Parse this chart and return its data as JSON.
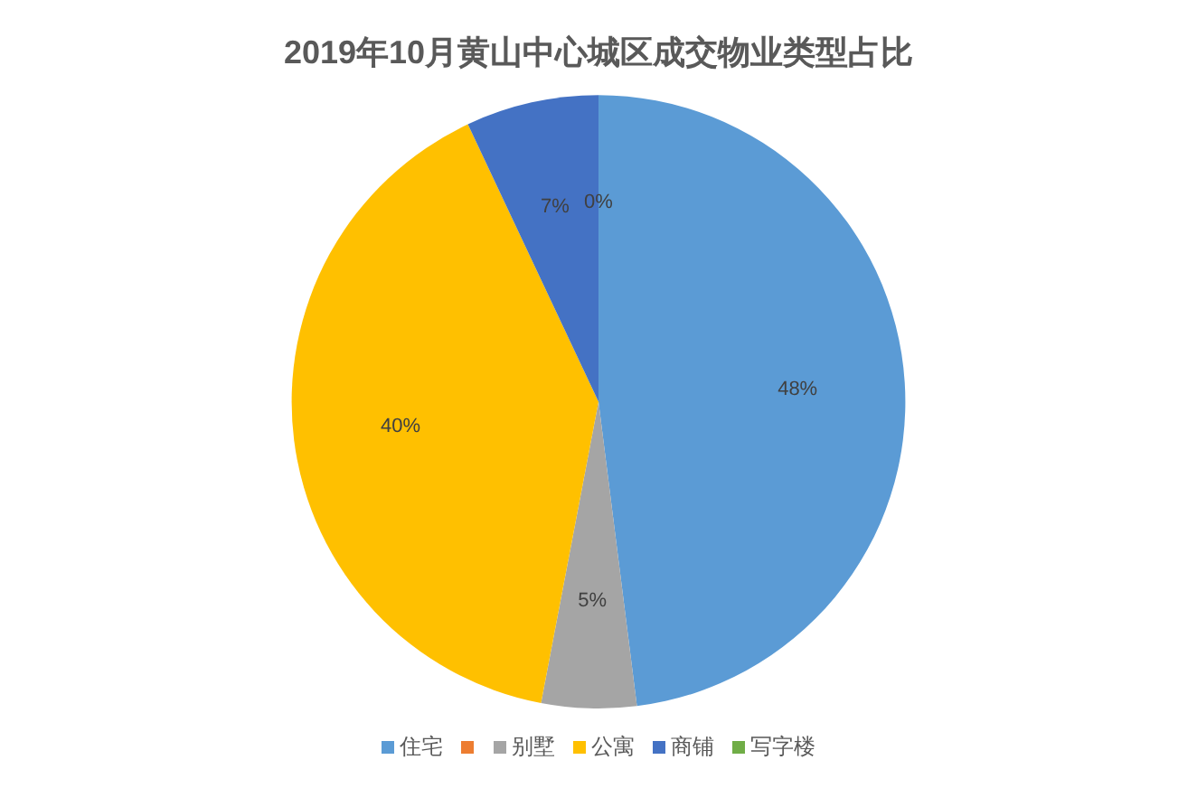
{
  "chart_data": {
    "type": "pie",
    "title": "2019年10月黄山中心城区成交物业类型占比",
    "categories": [
      "住宅",
      null,
      "别墅",
      "公寓",
      "商铺",
      "写字楼"
    ],
    "values": [
      48,
      0,
      5,
      40,
      7,
      0
    ],
    "colors": [
      "#5b9bd5",
      "#ed7d31",
      "#a5a5a5",
      "#ffc000",
      "#4472c4",
      "#70ad47"
    ],
    "value_labels": [
      "48%",
      null,
      "5%",
      "40%",
      "7%",
      "0%"
    ],
    "legend": "bottom"
  }
}
